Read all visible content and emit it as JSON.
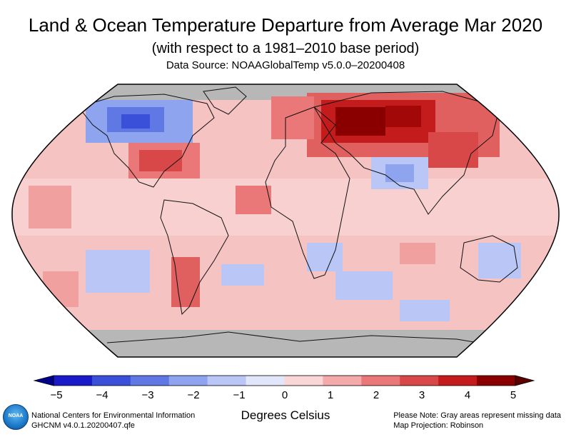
{
  "header": {
    "title": "Land & Ocean Temperature Departure from Average Mar 2020",
    "subtitle": "(with respect to a 1981–2010 base period)",
    "source": "Data Source: NOAAGlobalTemp v5.0.0–20200408"
  },
  "colorbar": {
    "ticks": [
      "−5",
      "−4",
      "−3",
      "−2",
      "−1",
      "0",
      "1",
      "2",
      "3",
      "4",
      "5"
    ],
    "range": [
      -5,
      5
    ],
    "colors": [
      "#1a1ac8",
      "#3b50d8",
      "#5f78e4",
      "#8fa4ee",
      "#b9c6f6",
      "#e2e6fb",
      "#fbd6d6",
      "#f4aaaa",
      "#ea7878",
      "#d94848",
      "#c41c1c",
      "#8a0000"
    ],
    "title": "Degrees Celsius"
  },
  "map": {
    "projection_note": "Map Projection: Robinson",
    "missing_color": "#b7b7b7",
    "ocean_base_color": "#f6c3c3"
  },
  "footer": {
    "logo_text": "NOAA",
    "org": "National Centers for Environmental Information",
    "dataset": "GHCNM v4.0.1.20200407.qfe",
    "note": "Please Note: Gray areas represent missing data",
    "projection": "Map Projection: Robinson"
  }
}
